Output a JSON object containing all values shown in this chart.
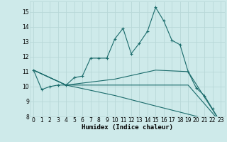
{
  "xlabel": "Humidex (Indice chaleur)",
  "background_color": "#ceeaea",
  "grid_color": "#b8d8d8",
  "line_color": "#1a6b6b",
  "xlim": [
    -0.5,
    23.5
  ],
  "ylim": [
    8,
    15.7
  ],
  "yticks": [
    8,
    9,
    10,
    11,
    12,
    13,
    14,
    15
  ],
  "xticks": [
    0,
    1,
    2,
    3,
    4,
    5,
    6,
    7,
    8,
    9,
    10,
    11,
    12,
    13,
    14,
    15,
    16,
    17,
    18,
    19,
    20,
    21,
    22,
    23
  ],
  "series1_x": [
    0,
    1,
    2,
    3,
    4,
    5,
    6,
    7,
    8,
    9,
    10,
    11,
    12,
    13,
    14,
    15,
    16,
    17,
    18,
    19,
    20,
    21,
    22,
    23
  ],
  "series1_y": [
    11.1,
    9.8,
    10.0,
    10.1,
    10.1,
    10.6,
    10.7,
    11.9,
    11.9,
    11.9,
    13.2,
    13.9,
    12.2,
    12.9,
    13.7,
    15.3,
    14.4,
    13.1,
    12.8,
    11.0,
    9.9,
    9.4,
    8.5,
    7.6
  ],
  "series2_x": [
    0,
    4,
    10,
    15,
    19,
    23
  ],
  "series2_y": [
    11.1,
    10.1,
    10.5,
    11.1,
    11.0,
    7.6
  ],
  "series3_x": [
    0,
    4,
    10,
    15,
    19,
    23
  ],
  "series3_y": [
    11.1,
    10.1,
    10.1,
    10.1,
    10.1,
    7.6
  ],
  "series4_x": [
    0,
    4,
    10,
    15,
    23
  ],
  "series4_y": [
    11.1,
    10.1,
    9.4,
    8.7,
    7.6
  ]
}
